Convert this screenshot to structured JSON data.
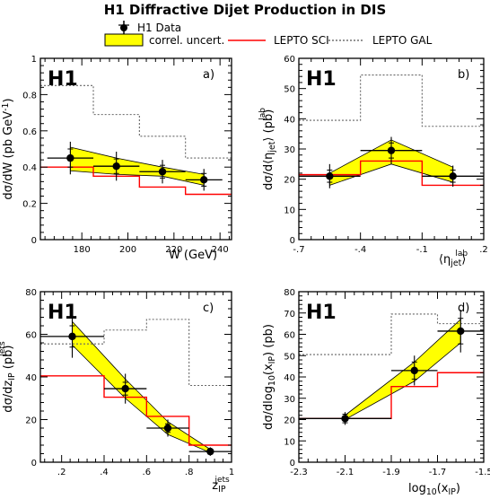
{
  "figure": {
    "title": "H1 Diffractive Dijet Production in DIS",
    "legend": {
      "data_label": "H1 Data",
      "band_label": "correl. uncert.",
      "sci_label": "LEPTO SCI",
      "gal_label": "LEPTO GAL"
    },
    "colors": {
      "band": "#ffff00",
      "sci": "#ff0000",
      "gal": "#666666",
      "data": "#000000"
    },
    "experiment_label": "H1"
  },
  "chart_data": [
    {
      "type": "line",
      "panel": "a)",
      "ylabel": "dσ/dW (pb GeV⁻¹)",
      "xlabel": "W  (GeV)",
      "xlim": [
        162,
        245
      ],
      "ylim": [
        0,
        1
      ],
      "xticks": [
        180,
        200,
        220,
        240
      ],
      "yticks": [
        0,
        0.2,
        0.4,
        0.6,
        0.8,
        1
      ],
      "data": [
        {
          "x": 175,
          "y": 0.45,
          "xerr": 10,
          "stat": 0.05,
          "tot": 0.09
        },
        {
          "x": 195,
          "y": 0.405,
          "xerr": 10,
          "stat": 0.04,
          "tot": 0.08
        },
        {
          "x": 215,
          "y": 0.375,
          "xerr": 10,
          "stat": 0.035,
          "tot": 0.065
        },
        {
          "x": 233,
          "y": 0.33,
          "xerr": 8,
          "stat": 0.035,
          "tot": 0.06
        }
      ],
      "band": {
        "x": [
          175,
          195,
          215,
          233
        ],
        "low": [
          0.38,
          0.36,
          0.35,
          0.3
        ],
        "high": [
          0.51,
          0.45,
          0.4,
          0.36
        ]
      },
      "sci": {
        "edges": [
          162,
          185,
          205,
          225,
          245
        ],
        "values": [
          0.4,
          0.35,
          0.29,
          0.25
        ]
      },
      "gal": {
        "edges": [
          162,
          185,
          205,
          225,
          245
        ],
        "values": [
          0.85,
          0.69,
          0.57,
          0.45
        ]
      }
    },
    {
      "type": "line",
      "panel": "b)",
      "ylabel": "dσ/d⟨η_jet^lab⟩ (pb)",
      "xlabel": "⟨η_jet^lab⟩",
      "xlim": [
        -0.7,
        0.2
      ],
      "ylim": [
        0,
        60
      ],
      "xticks": [
        -0.7,
        -0.4,
        -0.1,
        0.2
      ],
      "yticks": [
        0,
        10,
        20,
        30,
        40,
        50,
        60
      ],
      "data": [
        {
          "x": -0.55,
          "y": 21,
          "xerr": 0.15,
          "stat": 2,
          "tot": 4
        },
        {
          "x": -0.25,
          "y": 29.5,
          "xerr": 0.15,
          "stat": 2.5,
          "tot": 4.5
        },
        {
          "x": 0.05,
          "y": 21,
          "xerr": 0.15,
          "stat": 2,
          "tot": 3.5
        }
      ],
      "band": {
        "x": [
          -0.55,
          -0.25,
          0.05
        ],
        "low": [
          18,
          25,
          19
        ],
        "high": [
          22,
          33,
          24
        ]
      },
      "sci": {
        "edges": [
          -0.7,
          -0.4,
          -0.1,
          0.2
        ],
        "values": [
          21.5,
          26,
          18
        ]
      },
      "gal": {
        "edges": [
          -0.7,
          -0.4,
          -0.1,
          0.2
        ],
        "values": [
          39.5,
          54.5,
          37.5
        ]
      }
    },
    {
      "type": "line",
      "panel": "c)",
      "ylabel": "dσ/dz_IP^jets (pb)",
      "xlabel": "z_IP^jets",
      "xlim": [
        0.1,
        1
      ],
      "ylim": [
        0,
        80
      ],
      "xticks": [
        0.2,
        0.4,
        0.6,
        0.8,
        1
      ],
      "yticks": [
        0,
        20,
        40,
        60,
        80
      ],
      "data": [
        {
          "x": 0.25,
          "y": 59,
          "xerr": 0.15,
          "stat": 5,
          "tot": 10
        },
        {
          "x": 0.5,
          "y": 34.5,
          "xerr": 0.1,
          "stat": 3,
          "tot": 7
        },
        {
          "x": 0.7,
          "y": 16,
          "xerr": 0.1,
          "stat": 2,
          "tot": 4
        },
        {
          "x": 0.9,
          "y": 5,
          "xerr": 0.1,
          "stat": 1,
          "tot": 2
        }
      ],
      "band": {
        "x": [
          0.25,
          0.5,
          0.7,
          0.9
        ],
        "low": [
          55,
          30,
          13,
          4.5
        ],
        "high": [
          66,
          39,
          19,
          6
        ]
      },
      "sci": {
        "edges": [
          0.1,
          0.4,
          0.6,
          0.8,
          1.0
        ],
        "values": [
          40.5,
          30.5,
          21.5,
          8
        ]
      },
      "gal": {
        "edges": [
          0.1,
          0.4,
          0.6,
          0.8,
          1.0
        ],
        "values": [
          55.5,
          62,
          67,
          36
        ]
      }
    },
    {
      "type": "line",
      "panel": "d)",
      "ylabel": "dσ/dlog₁₀(x_IP) (pb)",
      "xlabel": "log₁₀(x_IP)",
      "xlim": [
        -2.3,
        -1.5
      ],
      "ylim": [
        0,
        80
      ],
      "xticks": [
        -2.3,
        -2.1,
        -1.9,
        -1.7,
        -1.5
      ],
      "yticks": [
        0,
        10,
        20,
        30,
        40,
        50,
        60,
        70,
        80
      ],
      "data": [
        {
          "x": -2.1,
          "y": 20.5,
          "xerr": 0.2,
          "stat": 2,
          "tot": 3
        },
        {
          "x": -1.8,
          "y": 43,
          "xerr": 0.1,
          "stat": 4,
          "tot": 7
        },
        {
          "x": -1.6,
          "y": 61.5,
          "xerr": 0.1,
          "stat": 6,
          "tot": 10
        }
      ],
      "band": {
        "x": [
          -2.1,
          -1.8,
          -1.6
        ],
        "low": [
          20,
          38,
          56
        ],
        "high": [
          22,
          47,
          67
        ]
      },
      "sci": {
        "edges": [
          -2.3,
          -1.9,
          -1.7,
          -1.5
        ],
        "values": [
          20.5,
          35.5,
          42
        ]
      },
      "gal": {
        "edges": [
          -2.3,
          -1.9,
          -1.7,
          -1.5
        ],
        "values": [
          50.5,
          69.5,
          65
        ]
      }
    }
  ]
}
